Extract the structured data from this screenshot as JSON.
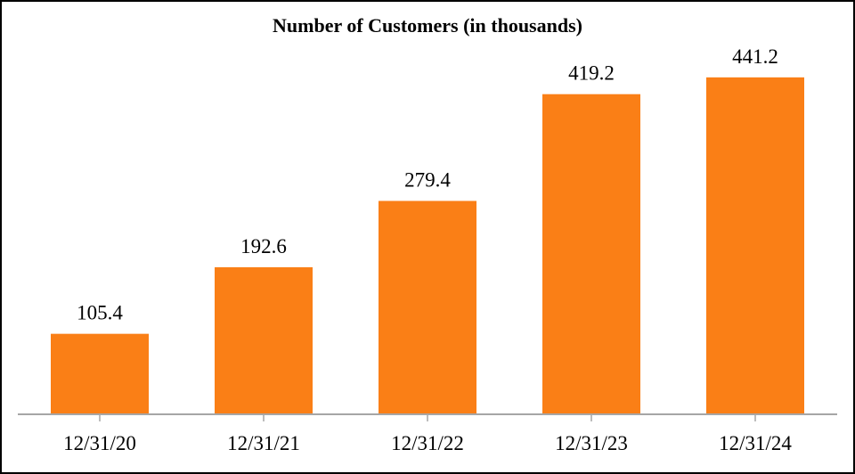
{
  "chart_data": {
    "type": "bar",
    "title": "Number of Customers (in thousands)",
    "xlabel": "",
    "ylabel": "",
    "categories": [
      "12/31/20",
      "12/31/21",
      "12/31/22",
      "12/31/23",
      "12/31/24"
    ],
    "values": [
      105.4,
      192.6,
      279.4,
      419.2,
      441.2
    ],
    "data_labels": [
      "105.4",
      "192.6",
      "279.4",
      "419.2",
      "441.2"
    ],
    "ylim": [
      0,
      490
    ],
    "grid": false,
    "legend": "none",
    "bar_color": "#FA7F16",
    "axis_color": "#A6A6A6"
  }
}
